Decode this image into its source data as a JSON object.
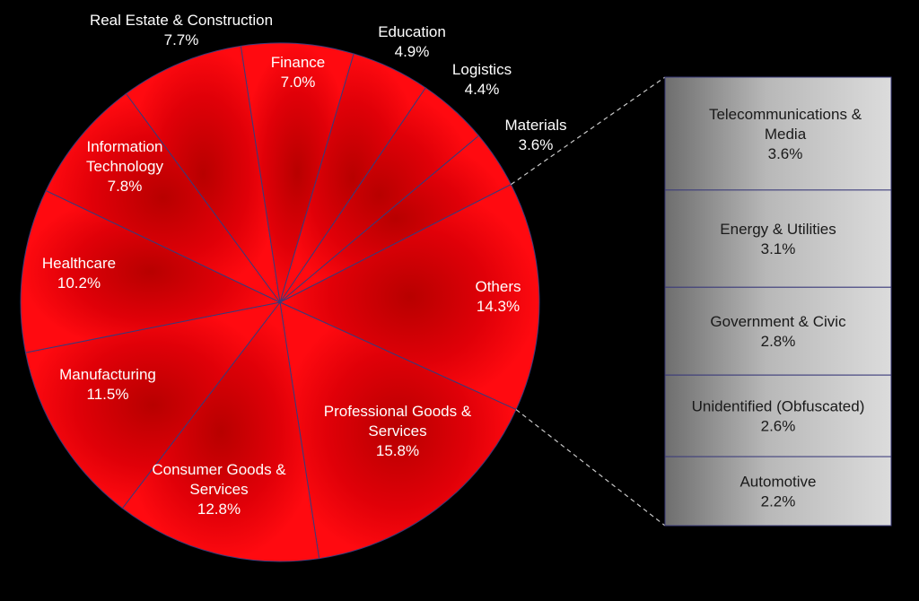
{
  "chart_data": {
    "type": "pie",
    "subtype": "bar-of-pie",
    "colors": {
      "slice": "#e8000b",
      "slice_dark": "#b30000",
      "edge": "#3a3a7a",
      "box_light": "#d9d9d9",
      "box_dark": "#6e6e6e",
      "connector": "#c8c8c8"
    },
    "slices": [
      {
        "label": "Materials",
        "value": 3.6,
        "display": "3.6%"
      },
      {
        "label": "Others",
        "value": 14.3,
        "display": "14.3%"
      },
      {
        "label": "Professional Goods & Services",
        "value": 15.8,
        "display": "15.8%"
      },
      {
        "label": "Consumer Goods & Services",
        "value": 12.8,
        "display": "12.8%"
      },
      {
        "label": "Manufacturing",
        "value": 11.5,
        "display": "11.5%"
      },
      {
        "label": "Healthcare",
        "value": 10.2,
        "display": "10.2%"
      },
      {
        "label": "Information Technology",
        "value": 7.8,
        "display": "7.8%"
      },
      {
        "label": "Real Estate & Construction",
        "value": 7.7,
        "display": "7.7%"
      },
      {
        "label": "Finance",
        "value": 7.0,
        "display": "7.0%"
      },
      {
        "label": "Education",
        "value": 4.9,
        "display": "4.9%"
      },
      {
        "label": "Logistics",
        "value": 4.4,
        "display": "4.4%"
      }
    ],
    "others_breakdown": [
      {
        "label": "Telecommunications & Media",
        "value": 3.6,
        "display": "3.6%"
      },
      {
        "label": "Energy & Utilities",
        "value": 3.1,
        "display": "3.1%"
      },
      {
        "label": "Government & Civic",
        "value": 2.8,
        "display": "2.8%"
      },
      {
        "label": "Unidentified (Obfuscated)",
        "value": 2.6,
        "display": "2.6%"
      },
      {
        "label": "Automotive",
        "value": 2.2,
        "display": "2.2%"
      }
    ]
  }
}
